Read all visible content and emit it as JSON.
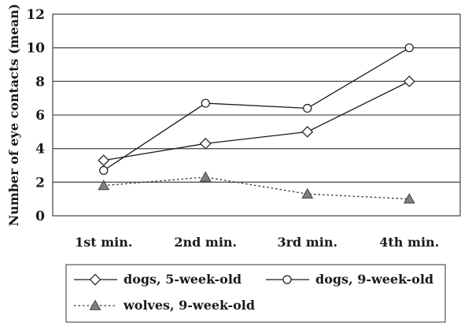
{
  "chart_data": {
    "type": "line",
    "title": "",
    "xlabel": "",
    "ylabel": "Number of eye contacts (mean)",
    "categories": [
      "1st min.",
      "2nd min.",
      "3rd min.",
      "4th min."
    ],
    "ylim": [
      0,
      12
    ],
    "yticks": [
      "0",
      "2",
      "4",
      "6",
      "8",
      "10",
      "12"
    ],
    "grid": true,
    "legend_position": "bottom",
    "series": [
      {
        "name": "dogs, 5-week-old",
        "values": [
          3.3,
          4.3,
          5.0,
          8.0
        ],
        "marker": "diamond",
        "line_style": "solid",
        "color": "#1a1a1a"
      },
      {
        "name": "dogs, 9-week-old",
        "values": [
          2.7,
          6.7,
          6.4,
          10.0
        ],
        "marker": "circle",
        "line_style": "solid",
        "color": "#1a1a1a"
      },
      {
        "name": "wolves, 9-week-old",
        "values": [
          1.8,
          2.3,
          1.3,
          1.0
        ],
        "marker": "triangle",
        "line_style": "dotted",
        "color": "#808080"
      }
    ]
  }
}
